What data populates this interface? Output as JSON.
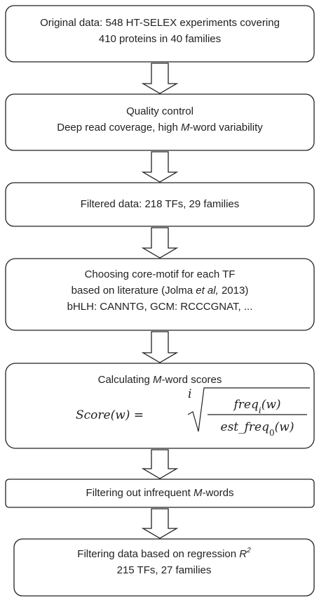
{
  "nodes": [
    {
      "lines": [
        [
          "Original data: 548 HT-SELEX experiments covering"
        ],
        [
          "410 proteins in 40 families"
        ]
      ]
    },
    {
      "lines": [
        [
          "Quality control"
        ],
        [
          "Deep read coverage, high ",
          {
            "text": "M",
            "style": "italic"
          },
          "-word variability"
        ]
      ]
    },
    {
      "lines": [
        [
          "Filtered data: 218 TFs, 29 families"
        ]
      ]
    },
    {
      "lines": [
        [
          "Choosing core-motif for each TF"
        ],
        [
          "based on literature (Jolma ",
          {
            "text": "et al,",
            "style": "italic"
          },
          " 2013)"
        ],
        [
          "bHLH: CANNTG, GCM: RCCCGNAT, ..."
        ]
      ]
    },
    {
      "lines": [
        [
          "Calculating ",
          {
            "text": "M",
            "style": "italic"
          },
          "-word scores"
        ]
      ],
      "formula": {
        "lhs": "Score(w) =",
        "index": "i",
        "numerator": [
          "freq",
          "i",
          "(w)"
        ],
        "denominator": [
          "est_freq",
          "0",
          "(w)"
        ]
      }
    },
    {
      "lines": [
        [
          "Filtering out infrequent ",
          {
            "text": "M",
            "style": "italic"
          },
          "-words"
        ]
      ]
    },
    {
      "lines": [
        [
          "Filtering data based on regression ",
          {
            "text": "R",
            "style": "italic"
          },
          {
            "text": "2",
            "style": "superscript"
          }
        ],
        [
          "215 TFs, 27 families"
        ]
      ]
    }
  ]
}
